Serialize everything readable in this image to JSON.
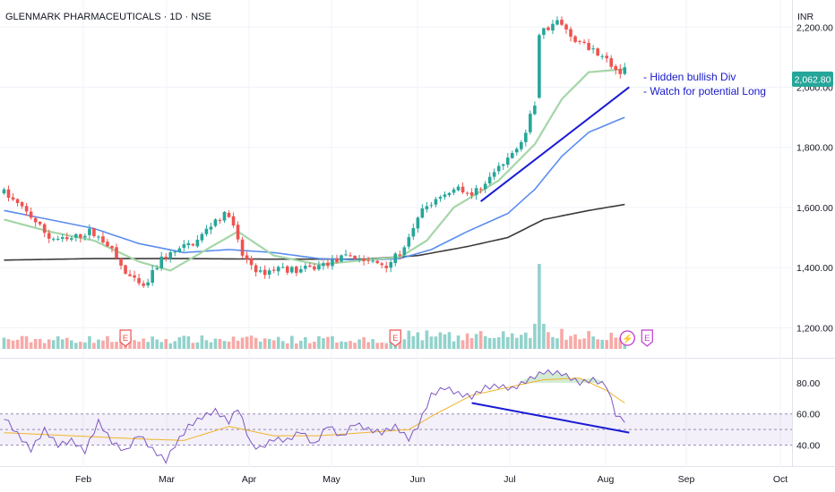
{
  "header": {
    "title": "GLENMARK PHARMACEUTICALS · 1D · NSE",
    "currency": "INR"
  },
  "annotation": {
    "line1": "- Hidden bullish Div",
    "line2": "- Watch for potential Long"
  },
  "event_markers": {
    "earnings_label": "E",
    "flash_label": "⚡"
  },
  "chart_data": [
    {
      "type": "candlestick",
      "title": "GLENMARK PHARMACEUTICALS · 1D · NSE",
      "ylabel": "INR",
      "ylim": [
        1100,
        2290
      ],
      "yticks": [
        1200,
        1400,
        1600,
        1800,
        2000,
        2200
      ],
      "ytick_labels": [
        "1,200.00",
        "1,400.00",
        "1,600.00",
        "1,800.00",
        "2,000.00",
        "2,200.00"
      ],
      "xticks": [
        "Feb",
        "Mar",
        "Apr",
        "May",
        "Jun",
        "Jul",
        "Aug",
        "Sep",
        "Oct"
      ],
      "last_price": 2062.8,
      "last_price_label": "2,062.80",
      "price_anchors": [
        [
          0,
          1650
        ],
        [
          6,
          1570
        ],
        [
          10,
          1500
        ],
        [
          14,
          1490
        ],
        [
          19,
          1520
        ],
        [
          23,
          1480
        ],
        [
          27,
          1380
        ],
        [
          31,
          1330
        ],
        [
          35,
          1430
        ],
        [
          39,
          1460
        ],
        [
          43,
          1490
        ],
        [
          47,
          1560
        ],
        [
          50,
          1580
        ],
        [
          53,
          1440
        ],
        [
          57,
          1380
        ],
        [
          61,
          1400
        ],
        [
          65,
          1390
        ],
        [
          69,
          1400
        ],
        [
          73,
          1420
        ],
        [
          77,
          1440
        ],
        [
          81,
          1420
        ],
        [
          85,
          1410
        ],
        [
          89,
          1460
        ],
        [
          93,
          1590
        ],
        [
          97,
          1640
        ],
        [
          101,
          1670
        ],
        [
          104,
          1640
        ],
        [
          108,
          1700
        ],
        [
          112,
          1760
        ],
        [
          116,
          1850
        ],
        [
          118,
          1950
        ],
        [
          119,
          2180
        ],
        [
          123,
          2220
        ],
        [
          126,
          2170
        ],
        [
          129,
          2140
        ],
        [
          133,
          2110
        ],
        [
          135,
          2070
        ],
        [
          137,
          2050
        ],
        [
          138,
          2062.8
        ]
      ],
      "sma_fast_anchors": [
        [
          0,
          1560
        ],
        [
          10,
          1520
        ],
        [
          20,
          1490
        ],
        [
          30,
          1420
        ],
        [
          37,
          1390
        ],
        [
          45,
          1460
        ],
        [
          52,
          1520
        ],
        [
          60,
          1440
        ],
        [
          70,
          1410
        ],
        [
          80,
          1425
        ],
        [
          88,
          1435
        ],
        [
          94,
          1490
        ],
        [
          100,
          1600
        ],
        [
          110,
          1690
        ],
        [
          118,
          1810
        ],
        [
          124,
          1960
        ],
        [
          130,
          2050
        ],
        [
          138,
          2060
        ]
      ],
      "sma_mid_anchors": [
        [
          0,
          1590
        ],
        [
          10,
          1560
        ],
        [
          20,
          1530
        ],
        [
          30,
          1480
        ],
        [
          40,
          1450
        ],
        [
          50,
          1460
        ],
        [
          60,
          1450
        ],
        [
          70,
          1430
        ],
        [
          80,
          1425
        ],
        [
          88,
          1430
        ],
        [
          95,
          1460
        ],
        [
          103,
          1520
        ],
        [
          112,
          1580
        ],
        [
          118,
          1660
        ],
        [
          124,
          1770
        ],
        [
          130,
          1850
        ],
        [
          138,
          1900
        ]
      ],
      "sma_slow_anchors": [
        [
          0,
          1425
        ],
        [
          20,
          1430
        ],
        [
          40,
          1430
        ],
        [
          60,
          1428
        ],
        [
          80,
          1428
        ],
        [
          92,
          1440
        ],
        [
          103,
          1470
        ],
        [
          112,
          1500
        ],
        [
          120,
          1560
        ],
        [
          130,
          1590
        ],
        [
          138,
          1610
        ]
      ],
      "trendline": [
        [
          106,
          1620
        ],
        [
          139,
          2000
        ]
      ],
      "earnings_markers_at": [
        27,
        87,
        139
      ],
      "volume_spike_at": 119,
      "series": [
        {
          "name": "price",
          "color_up": "#26a69a",
          "color_down": "#ef5350"
        },
        {
          "name": "fast MA",
          "color": "#a5d6a7"
        },
        {
          "name": "mid MA",
          "color": "#5b8def"
        },
        {
          "name": "slow MA",
          "color": "#3c3c3c"
        }
      ]
    },
    {
      "type": "line",
      "ylim": [
        26,
        96
      ],
      "yticks": [
        40,
        60,
        80
      ],
      "ytick_labels": [
        "40.00",
        "60.00",
        "80.00"
      ],
      "band": [
        40,
        60
      ],
      "midline": 50,
      "rsi_anchors": [
        [
          0,
          58
        ],
        [
          3,
          47
        ],
        [
          6,
          37
        ],
        [
          9,
          50
        ],
        [
          12,
          40
        ],
        [
          15,
          43
        ],
        [
          18,
          36
        ],
        [
          21,
          55
        ],
        [
          24,
          42
        ],
        [
          27,
          36
        ],
        [
          30,
          47
        ],
        [
          33,
          37
        ],
        [
          36,
          30
        ],
        [
          38,
          40
        ],
        [
          41,
          52
        ],
        [
          44,
          58
        ],
        [
          47,
          62
        ],
        [
          50,
          55
        ],
        [
          52,
          64
        ],
        [
          55,
          40
        ],
        [
          57,
          38
        ],
        [
          60,
          44
        ],
        [
          63,
          43
        ],
        [
          66,
          49
        ],
        [
          69,
          40
        ],
        [
          72,
          53
        ],
        [
          75,
          45
        ],
        [
          78,
          54
        ],
        [
          81,
          50
        ],
        [
          84,
          48
        ],
        [
          87,
          52
        ],
        [
          90,
          44
        ],
        [
          92,
          52
        ],
        [
          95,
          72
        ],
        [
          98,
          77
        ],
        [
          101,
          73
        ],
        [
          104,
          71
        ],
        [
          107,
          77
        ],
        [
          110,
          78
        ],
        [
          113,
          76
        ],
        [
          116,
          81
        ],
        [
          118,
          84
        ],
        [
          120,
          87
        ],
        [
          124,
          86
        ],
        [
          128,
          80
        ],
        [
          131,
          82
        ],
        [
          134,
          78
        ],
        [
          136,
          60
        ],
        [
          137,
          57
        ],
        [
          138,
          56
        ]
      ],
      "signal_anchors": [
        [
          0,
          48
        ],
        [
          15,
          46
        ],
        [
          30,
          44
        ],
        [
          40,
          43
        ],
        [
          50,
          52
        ],
        [
          60,
          46
        ],
        [
          70,
          46
        ],
        [
          80,
          48
        ],
        [
          90,
          50
        ],
        [
          96,
          60
        ],
        [
          104,
          72
        ],
        [
          112,
          77
        ],
        [
          120,
          82
        ],
        [
          128,
          83
        ],
        [
          134,
          75
        ],
        [
          138,
          67
        ]
      ],
      "divergence_line": [
        [
          104,
          67
        ],
        [
          139,
          48
        ]
      ],
      "series": [
        {
          "name": "RSI",
          "color": "#7e57c2"
        },
        {
          "name": "RSI MA",
          "color": "#f0b429"
        }
      ]
    }
  ]
}
